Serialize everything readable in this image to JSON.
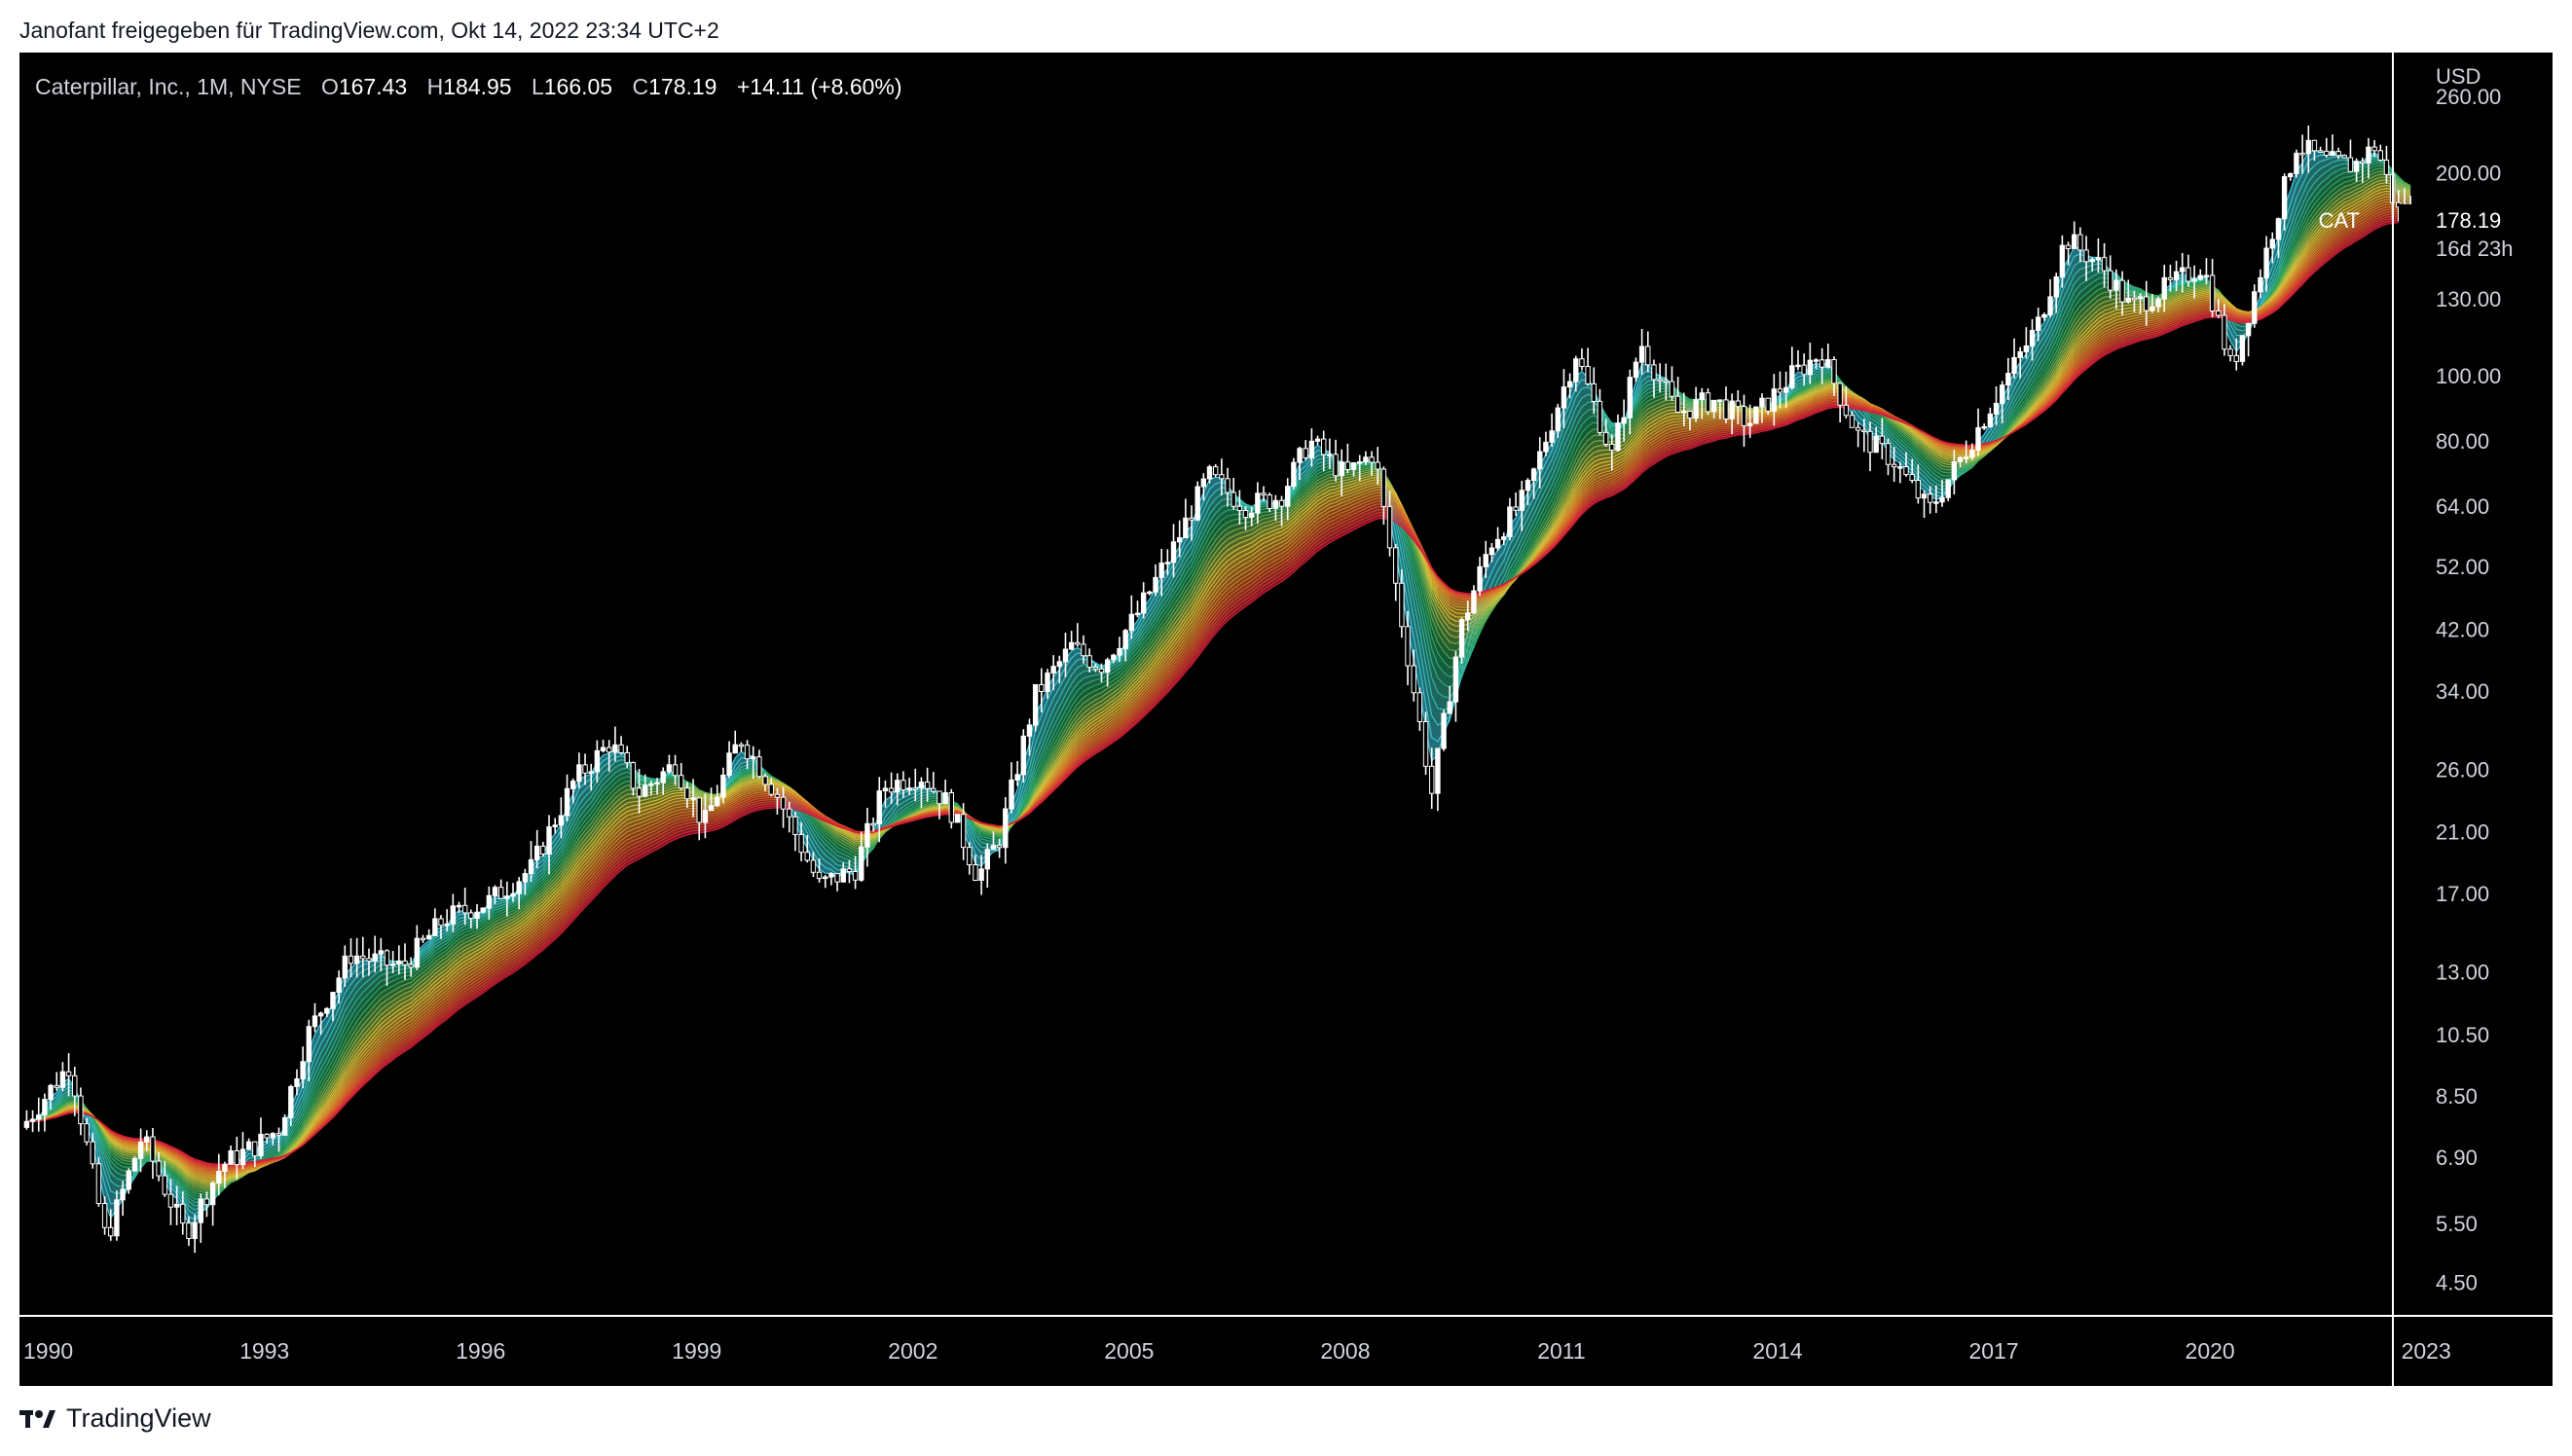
{
  "header": {
    "publisher_line": "Janofant freigegeben für TradingView.com, Okt 14, 2022 23:34 UTC+2"
  },
  "legend": {
    "symbol": "Caterpillar, Inc., 1M, NYSE",
    "o_label": "O",
    "o_value": "167.43",
    "h_label": "H",
    "h_value": "184.95",
    "l_label": "L",
    "l_value": "166.05",
    "c_label": "C",
    "c_value": "178.19",
    "change": "+14.11 (+8.60%)"
  },
  "price_axis": {
    "currency": "USD",
    "ticks": [
      "260.00",
      "200.00",
      "130.00",
      "100.00",
      "80.00",
      "64.00",
      "52.00",
      "42.00",
      "34.00",
      "26.00",
      "21.00",
      "17.00",
      "13.00",
      "10.50",
      "8.50",
      "6.90",
      "5.50",
      "4.50"
    ]
  },
  "last_price": {
    "ticker": "CAT",
    "price": "178.19",
    "countdown": "16d 23h"
  },
  "time_axis": {
    "ticks": [
      "1990",
      "1993",
      "1996",
      "1999",
      "2002",
      "2005",
      "2008",
      "2011",
      "2014",
      "2017",
      "2020",
      "2023"
    ]
  },
  "footer": {
    "brand": "TradingView",
    "logo_icon": "tradingview-logo-icon"
  },
  "colors": {
    "background": "#000000",
    "candle": "#ffffff",
    "text": "#131722",
    "axis_text": "#d1d4dc",
    "ribbon_fast": "#3ec9e0",
    "ribbon_mid": "#d6c23a",
    "ribbon_slow": "#d11a38"
  },
  "chart_data": {
    "type": "candlestick",
    "title": "Caterpillar, Inc., 1M, NYSE",
    "scale": "log",
    "ylim": [
      4.2,
      290
    ],
    "xlim": [
      1989.6,
      2024.7
    ],
    "grid": false,
    "overlay": "moving-average ribbon (cyan/green -> yellow -> red)",
    "anchors": [
      [
        1989.7,
        7.8
      ],
      [
        1990.3,
        9.5
      ],
      [
        1990.8,
        5.2
      ],
      [
        1991.3,
        7.4
      ],
      [
        1991.9,
        5.3
      ],
      [
        1992.4,
        6.7
      ],
      [
        1992.9,
        7.2
      ],
      [
        1993.2,
        7.6
      ],
      [
        1993.6,
        10.5
      ],
      [
        1994.2,
        13.8
      ],
      [
        1994.9,
        13.2
      ],
      [
        1995.5,
        15.6
      ],
      [
        1996.1,
        16.5
      ],
      [
        1996.7,
        18.5
      ],
      [
        1997.3,
        25.0
      ],
      [
        1997.8,
        28.5
      ],
      [
        1998.2,
        24.0
      ],
      [
        1998.7,
        26.5
      ],
      [
        1999.1,
        21.5
      ],
      [
        1999.6,
        29.0
      ],
      [
        2000.1,
        24.0
      ],
      [
        2000.7,
        17.5
      ],
      [
        2001.2,
        18.5
      ],
      [
        2001.6,
        24.5
      ],
      [
        2002.1,
        25.5
      ],
      [
        2002.5,
        23.0
      ],
      [
        2002.9,
        18.0
      ],
      [
        2003.2,
        20.5
      ],
      [
        2003.7,
        33.5
      ],
      [
        2004.2,
        39.5
      ],
      [
        2004.6,
        37.0
      ],
      [
        2005.1,
        44.0
      ],
      [
        2005.6,
        55.0
      ],
      [
        2006.1,
        71.0
      ],
      [
        2006.6,
        64.0
      ],
      [
        2007.1,
        66.0
      ],
      [
        2007.5,
        80.0
      ],
      [
        2008.0,
        71.0
      ],
      [
        2008.4,
        77.0
      ],
      [
        2008.8,
        42.0
      ],
      [
        2009.2,
        24.0
      ],
      [
        2009.6,
        42.0
      ],
      [
        2010.0,
        56.0
      ],
      [
        2010.5,
        66.0
      ],
      [
        2011.2,
        108.0
      ],
      [
        2011.7,
        76.0
      ],
      [
        2012.1,
        112.0
      ],
      [
        2012.6,
        88.0
      ],
      [
        2013.1,
        92.0
      ],
      [
        2013.6,
        85.0
      ],
      [
        2014.2,
        100.0
      ],
      [
        2014.6,
        108.0
      ],
      [
        2015.1,
        82.0
      ],
      [
        2015.6,
        75.0
      ],
      [
        2016.1,
        63.0
      ],
      [
        2016.6,
        77.0
      ],
      [
        2017.1,
        96.0
      ],
      [
        2017.6,
        118.0
      ],
      [
        2018.0,
        160.0
      ],
      [
        2018.5,
        145.0
      ],
      [
        2018.9,
        126.0
      ],
      [
        2019.4,
        135.0
      ],
      [
        2019.9,
        146.0
      ],
      [
        2020.3,
        102.0
      ],
      [
        2020.8,
        155.0
      ],
      [
        2021.2,
        220.0
      ],
      [
        2021.6,
        208.0
      ],
      [
        2022.0,
        205.0
      ],
      [
        2022.3,
        220.0
      ],
      [
        2022.6,
        175.0
      ],
      [
        2022.8,
        178.19
      ]
    ],
    "last_bar": {
      "open": 167.43,
      "high": 184.95,
      "low": 166.05,
      "close": 178.19
    }
  }
}
